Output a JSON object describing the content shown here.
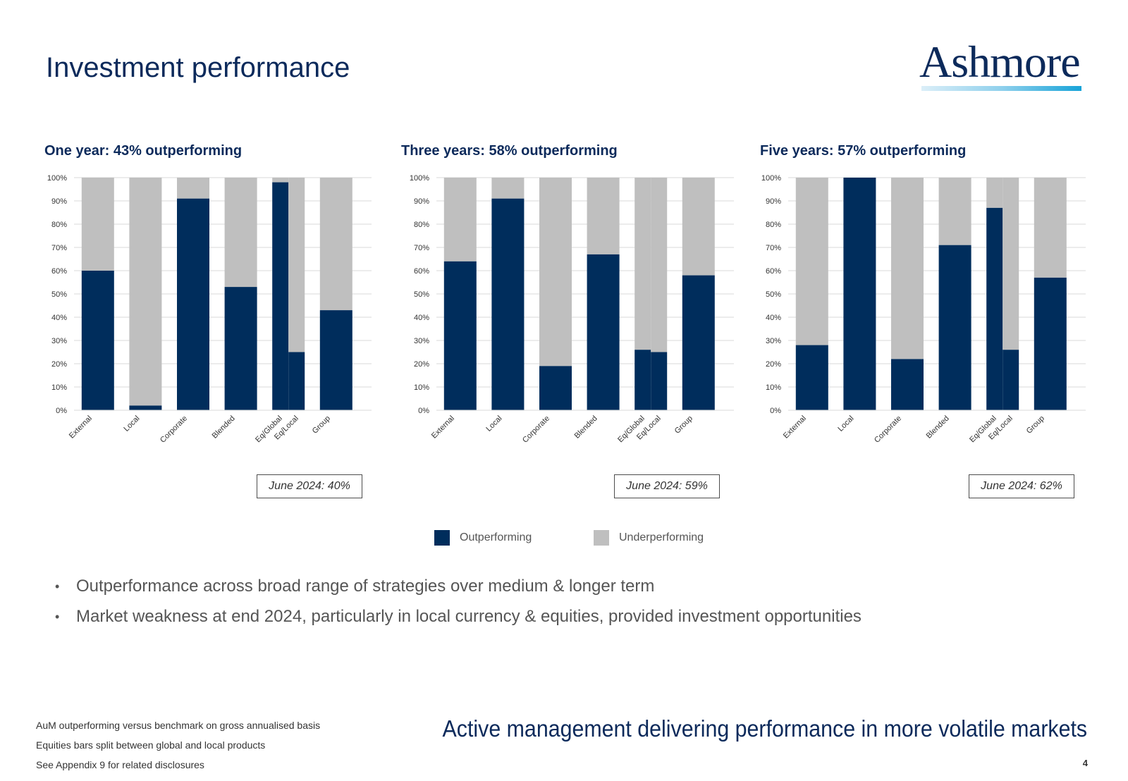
{
  "page": {
    "title": "Investment performance",
    "logo_text": "Ashmore",
    "page_number": "4"
  },
  "chart_data": [
    {
      "type": "bar",
      "stacked": true,
      "title": "One year: 43% outperforming",
      "categories": [
        "External",
        "Local",
        "Corporate",
        "Blended",
        "Eq/Global",
        "Eq/Local",
        "Group"
      ],
      "series": [
        {
          "name": "Outperforming",
          "values": [
            60,
            2,
            91,
            53,
            98,
            25,
            43
          ]
        },
        {
          "name": "Underperforming",
          "values": [
            40,
            98,
            9,
            47,
            2,
            75,
            57
          ]
        }
      ],
      "yticks": [
        "0%",
        "10%",
        "20%",
        "30%",
        "40%",
        "50%",
        "60%",
        "70%",
        "80%",
        "90%",
        "100%"
      ],
      "ylim": [
        0,
        100
      ],
      "note": "June 2024: 40%"
    },
    {
      "type": "bar",
      "stacked": true,
      "title": "Three years: 58% outperforming",
      "categories": [
        "External",
        "Local",
        "Corporate",
        "Blended",
        "Eq/Global",
        "Eq/Local",
        "Group"
      ],
      "series": [
        {
          "name": "Outperforming",
          "values": [
            64,
            91,
            19,
            67,
            26,
            25,
            58
          ]
        },
        {
          "name": "Underperforming",
          "values": [
            36,
            9,
            81,
            33,
            74,
            75,
            42
          ]
        }
      ],
      "yticks": [
        "0%",
        "10%",
        "20%",
        "30%",
        "40%",
        "50%",
        "60%",
        "70%",
        "80%",
        "90%",
        "100%"
      ],
      "ylim": [
        0,
        100
      ],
      "note": "June 2024: 59%"
    },
    {
      "type": "bar",
      "stacked": true,
      "title": "Five years: 57% outperforming",
      "categories": [
        "External",
        "Local",
        "Corporate",
        "Blended",
        "Eq/Global",
        "Eq/Local",
        "Group"
      ],
      "series": [
        {
          "name": "Outperforming",
          "values": [
            28,
            100,
            22,
            71,
            87,
            26,
            57
          ]
        },
        {
          "name": "Underperforming",
          "values": [
            72,
            0,
            78,
            29,
            13,
            74,
            43
          ]
        }
      ],
      "yticks": [
        "0%",
        "10%",
        "20%",
        "30%",
        "40%",
        "50%",
        "60%",
        "70%",
        "80%",
        "90%",
        "100%"
      ],
      "ylim": [
        0,
        100
      ],
      "note": "June 2024: 62%"
    }
  ],
  "legend": [
    {
      "label": "Outperforming",
      "color": "#002d5c"
    },
    {
      "label": "Underperforming",
      "color": "#bfbfbf"
    }
  ],
  "bullets": [
    "Outperformance across broad range of strategies over medium & longer term",
    "Market weakness at end 2024, particularly in local currency & equities, provided investment opportunities"
  ],
  "footnotes": [
    "AuM outperforming versus benchmark on gross annualised basis",
    "Equities bars split between global and local products",
    "See Appendix 9 for related disclosures"
  ],
  "tagline": "Active management delivering performance in more volatile markets"
}
